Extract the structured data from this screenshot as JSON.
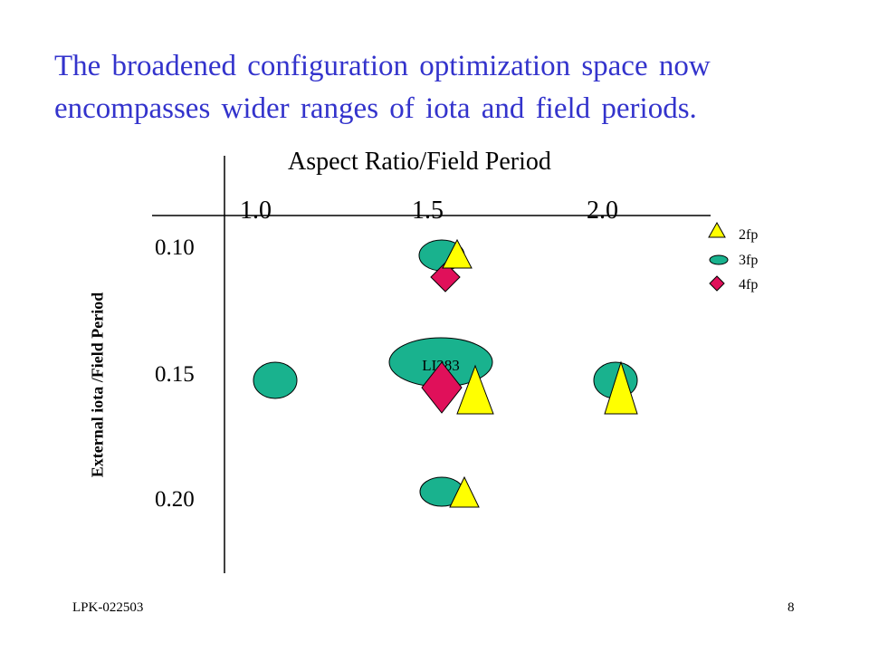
{
  "slide": {
    "title": "The broadened configuration optimization space now encompasses wider ranges of iota and field periods.",
    "footer_left": "LPK-022503",
    "page_number": "8"
  },
  "axes": {
    "x_title": "Aspect Ratio/Field Period",
    "x_ticks": [
      "1.0",
      "1.5",
      "2.0"
    ],
    "y_title": "External iota /Field Period",
    "y_ticks": [
      "0.10",
      "0.15",
      "0.20"
    ]
  },
  "legend": [
    {
      "shape": "triangle",
      "label": "2fp",
      "color": "#ffff00"
    },
    {
      "shape": "ellipse",
      "label": "3fp",
      "color": "#19b28e"
    },
    {
      "shape": "diamond",
      "label": "4fp",
      "color": "#e0105a"
    }
  ],
  "annotations": {
    "reference_label": "LI383"
  },
  "colors": {
    "title": "#3333cc",
    "triangle_fill": "#ffff00",
    "ellipse_fill": "#19b28e",
    "diamond_fill": "#e0105a",
    "outline": "#000000"
  }
}
